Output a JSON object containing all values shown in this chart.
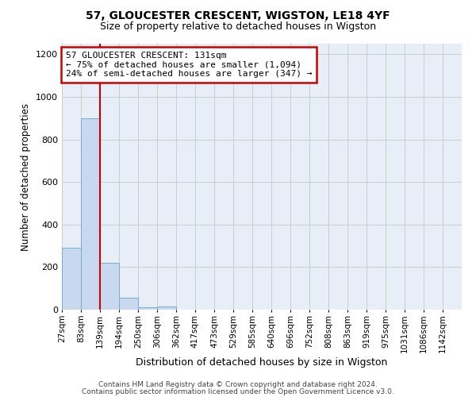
{
  "title1": "57, GLOUCESTER CRESCENT, WIGSTON, LE18 4YF",
  "title2": "Size of property relative to detached houses in Wigston",
  "xlabel": "Distribution of detached houses by size in Wigston",
  "ylabel": "Number of detached properties",
  "bin_labels": [
    "27sqm",
    "83sqm",
    "139sqm",
    "194sqm",
    "250sqm",
    "306sqm",
    "362sqm",
    "417sqm",
    "473sqm",
    "529sqm",
    "585sqm",
    "640sqm",
    "696sqm",
    "752sqm",
    "808sqm",
    "863sqm",
    "919sqm",
    "975sqm",
    "1031sqm",
    "1086sqm",
    "1142sqm"
  ],
  "bin_edges": [
    27,
    83,
    139,
    194,
    250,
    306,
    362,
    417,
    473,
    529,
    585,
    640,
    696,
    752,
    808,
    863,
    919,
    975,
    1031,
    1086,
    1142
  ],
  "bar_heights": [
    290,
    900,
    220,
    55,
    10,
    15,
    0,
    0,
    0,
    0,
    0,
    0,
    0,
    0,
    0,
    0,
    0,
    0,
    0,
    0
  ],
  "bar_color": "#c8d9ef",
  "bar_edge_color": "#7aaad0",
  "grid_color": "#cccccc",
  "vline_x": 139,
  "vline_color": "#cc0000",
  "annotation_text": "57 GLOUCESTER CRESCENT: 131sqm\n← 75% of detached houses are smaller (1,094)\n24% of semi-detached houses are larger (347) →",
  "annotation_box_color": "#cc0000",
  "ylim": [
    0,
    1250
  ],
  "yticks": [
    0,
    200,
    400,
    600,
    800,
    1000,
    1200
  ],
  "footer1": "Contains HM Land Registry data © Crown copyright and database right 2024.",
  "footer2": "Contains public sector information licensed under the Open Government Licence v3.0.",
  "bg_color": "#e8eef8"
}
